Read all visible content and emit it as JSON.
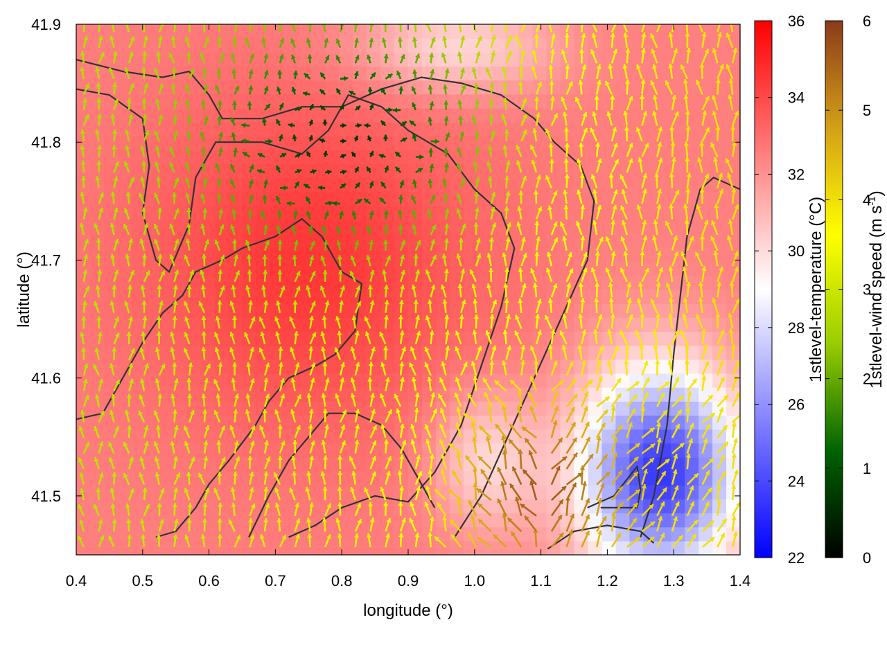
{
  "chart_data": {
    "type": "heatmap",
    "subtype": "vector-field-over-temperature-map",
    "xlabel": "longitude (°)",
    "ylabel": "latitude (°)",
    "xlim": [
      0.4,
      1.4
    ],
    "ylim": [
      41.45,
      41.9
    ],
    "xticks": [
      0.4,
      0.5,
      0.6,
      0.7,
      0.8,
      0.9,
      1.0,
      1.1,
      1.2,
      1.3,
      1.4
    ],
    "xtick_labels": [
      "0.4",
      "0.5",
      "0.6",
      "0.7",
      "0.8",
      "0.9",
      "1.0",
      "1.1",
      "1.2",
      "1.3",
      "1.4"
    ],
    "yticks": [
      41.5,
      41.6,
      41.7,
      41.8,
      41.9
    ],
    "ytick_labels": [
      "41.5",
      "41.6",
      "41.7",
      "41.8",
      "41.9"
    ],
    "grid": false,
    "temperature_colorbar": {
      "label": "1stlevel-temperature (°C)",
      "range": [
        22,
        36
      ],
      "ticks": [
        22,
        24,
        26,
        28,
        30,
        32,
        34,
        36
      ],
      "tick_labels": [
        "22",
        "24",
        "26",
        "28",
        "30",
        "32",
        "34",
        "36"
      ],
      "colors": [
        "#0000ff",
        "#ffffff",
        "#ff0000"
      ]
    },
    "wind_colorbar": {
      "label_main": "1stlevel-wind speed (m s",
      "label_sup": "-1",
      "label_end": ")",
      "range": [
        0,
        6
      ],
      "ticks": [
        0,
        1,
        2,
        3,
        4,
        5,
        6
      ],
      "tick_labels": [
        "0",
        "1",
        "2",
        "3",
        "4",
        "5",
        "6"
      ],
      "colors": [
        "#000000",
        "#006400",
        "#9acd00",
        "#ffff00",
        "#d4a017",
        "#8b3a1a"
      ]
    },
    "temperature_field": {
      "base": 32.5,
      "hot_core": {
        "lon": 0.75,
        "lat": 41.7,
        "value": 34.5
      },
      "cool_core": {
        "lon": 1.28,
        "lat": 41.52,
        "value": 23.5
      },
      "mid_white": {
        "lon": 1.02,
        "lat": 41.53,
        "value": 29
      }
    },
    "wind_field": {
      "calm_region": {
        "lon": 0.8,
        "lat": 41.8,
        "speed": 0.6
      },
      "fast_region": {
        "lon": 1.1,
        "lat": 41.5,
        "speed": 5.6
      },
      "west_speed": 2.8,
      "east_speed": 4.0,
      "prevailing_direction": "from south"
    },
    "contours": [
      {
        "points": [
          [
            0.4,
            41.87
          ],
          [
            0.47,
            41.86
          ],
          [
            0.53,
            41.855
          ],
          [
            0.57,
            41.86
          ],
          [
            0.6,
            41.84
          ],
          [
            0.62,
            41.82
          ],
          [
            0.68,
            41.82
          ],
          [
            0.74,
            41.83
          ],
          [
            0.8,
            41.83
          ],
          [
            0.86,
            41.845
          ],
          [
            0.92,
            41.855
          ],
          [
            0.98,
            41.85
          ],
          [
            1.04,
            41.84
          ],
          [
            1.09,
            41.82
          ],
          [
            1.12,
            41.8
          ],
          [
            1.16,
            41.78
          ],
          [
            1.18,
            41.75
          ],
          [
            1.17,
            41.7
          ],
          [
            1.13,
            41.65
          ],
          [
            1.09,
            41.6
          ],
          [
            1.05,
            41.55
          ],
          [
            1.01,
            41.5
          ],
          [
            0.97,
            41.465
          ]
        ]
      },
      {
        "points": [
          [
            0.4,
            41.845
          ],
          [
            0.45,
            41.84
          ],
          [
            0.5,
            41.82
          ],
          [
            0.51,
            41.78
          ],
          [
            0.5,
            41.74
          ],
          [
            0.52,
            41.7
          ],
          [
            0.54,
            41.69
          ],
          [
            0.57,
            41.73
          ],
          [
            0.58,
            41.77
          ],
          [
            0.61,
            41.8
          ],
          [
            0.68,
            41.8
          ],
          [
            0.74,
            41.79
          ],
          [
            0.78,
            41.81
          ],
          [
            0.81,
            41.84
          ],
          [
            0.86,
            41.83
          ],
          [
            0.9,
            41.81
          ],
          [
            0.96,
            41.79
          ],
          [
            1.0,
            41.76
          ],
          [
            1.04,
            41.74
          ],
          [
            1.06,
            41.71
          ],
          [
            1.04,
            41.66
          ],
          [
            1.01,
            41.61
          ],
          [
            0.98,
            41.56
          ],
          [
            0.94,
            41.52
          ],
          [
            0.9,
            41.495
          ],
          [
            0.85,
            41.5
          ],
          [
            0.8,
            41.49
          ],
          [
            0.76,
            41.475
          ],
          [
            0.72,
            41.465
          ]
        ]
      },
      {
        "points": [
          [
            0.4,
            41.565
          ],
          [
            0.44,
            41.57
          ],
          [
            0.47,
            41.6
          ],
          [
            0.5,
            41.63
          ],
          [
            0.53,
            41.655
          ],
          [
            0.56,
            41.67
          ],
          [
            0.58,
            41.69
          ],
          [
            0.62,
            41.7
          ],
          [
            0.65,
            41.71
          ],
          [
            0.7,
            41.72
          ],
          [
            0.74,
            41.735
          ],
          [
            0.77,
            41.72
          ],
          [
            0.8,
            41.69
          ],
          [
            0.83,
            41.68
          ],
          [
            0.82,
            41.64
          ],
          [
            0.79,
            41.62
          ],
          [
            0.76,
            41.61
          ],
          [
            0.72,
            41.6
          ],
          [
            0.69,
            41.58
          ],
          [
            0.67,
            41.56
          ],
          [
            0.63,
            41.53
          ],
          [
            0.6,
            41.51
          ],
          [
            0.58,
            41.49
          ],
          [
            0.55,
            41.47
          ],
          [
            0.52,
            41.465
          ]
        ]
      },
      {
        "points": [
          [
            0.66,
            41.465
          ],
          [
            0.69,
            41.5
          ],
          [
            0.72,
            41.53
          ],
          [
            0.75,
            41.55
          ],
          [
            0.78,
            41.57
          ],
          [
            0.82,
            41.57
          ],
          [
            0.86,
            41.56
          ],
          [
            0.89,
            41.54
          ],
          [
            0.92,
            41.51
          ],
          [
            0.94,
            41.49
          ]
        ]
      },
      {
        "points": [
          [
            1.11,
            41.455
          ],
          [
            1.15,
            41.47
          ],
          [
            1.2,
            41.475
          ],
          [
            1.25,
            41.47
          ],
          [
            1.27,
            41.46
          ]
        ]
      },
      {
        "points": [
          [
            1.17,
            41.49
          ],
          [
            1.21,
            41.5
          ],
          [
            1.245,
            41.525
          ],
          [
            1.25,
            41.505
          ],
          [
            1.245,
            41.49
          ],
          [
            1.19,
            41.49
          ]
        ]
      },
      {
        "points": [
          [
            1.25,
            41.465
          ],
          [
            1.27,
            41.5
          ],
          [
            1.29,
            41.56
          ],
          [
            1.3,
            41.62
          ],
          [
            1.31,
            41.67
          ],
          [
            1.32,
            41.72
          ],
          [
            1.34,
            41.76
          ],
          [
            1.36,
            41.77
          ],
          [
            1.4,
            41.76
          ]
        ]
      }
    ]
  }
}
